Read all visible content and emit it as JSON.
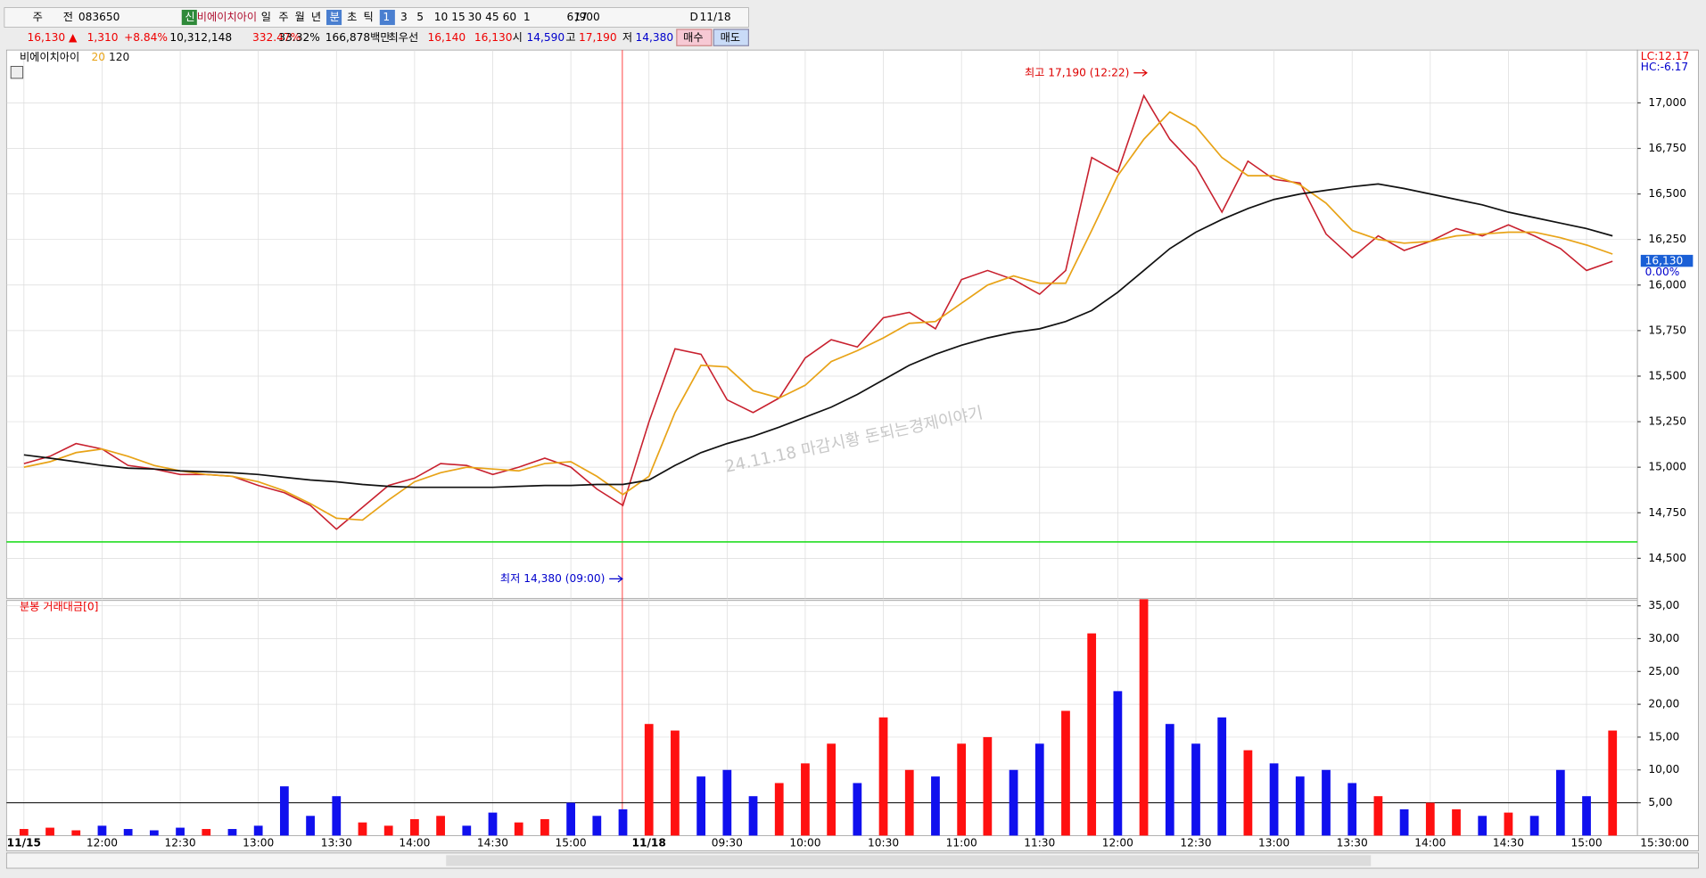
{
  "toolbar": {
    "items": [
      "주",
      "전",
      "083650",
      "신",
      "비에이치아이",
      "일",
      "주",
      "월",
      "년",
      "분",
      "초",
      "틱",
      "1",
      "3",
      "5",
      "10",
      "15",
      "30",
      "45",
      "60",
      "1",
      "617",
      "/900",
      "D",
      "11/18"
    ]
  },
  "info_bar": {
    "items": [
      "16,130 ▲",
      "1,310",
      "+8.84%",
      "10,312,148",
      "332.47%",
      "33.32%",
      "166,878백만",
      "최우선",
      "16,140",
      "16,130",
      "시",
      "14,590",
      "고",
      "17,190",
      "저",
      "14,380",
      "매수",
      "매도"
    ]
  },
  "chart_data": [
    {
      "type": "line",
      "categories": [
        "11/15",
        null,
        null,
        "12:00",
        null,
        null,
        "12:30",
        null,
        null,
        "13:00",
        null,
        null,
        "13:30",
        null,
        null,
        "14:00",
        null,
        null,
        "14:30",
        null,
        null,
        "15:00",
        null,
        null,
        "11/18",
        null,
        null,
        "09:30",
        null,
        null,
        "10:00",
        null,
        null,
        "10:30",
        null,
        null,
        "11:00",
        null,
        null,
        "11:30",
        null,
        null,
        "12:00",
        null,
        null,
        "12:30",
        null,
        null,
        "13:00",
        null,
        null,
        "13:30",
        null,
        null,
        "14:00",
        null,
        null,
        "14:30",
        null,
        null,
        "15:00",
        null,
        null,
        "15:30:00"
      ],
      "series": [
        {
          "name": "비에이치아이",
          "color": "#c8202e",
          "values": [
            15020,
            15060,
            15130,
            15100,
            15010,
            14990,
            14960,
            14960,
            14950,
            14900,
            14860,
            14790,
            14660,
            14780,
            14900,
            14940,
            15020,
            15010,
            14960,
            15000,
            15050,
            15000,
            14880,
            14790,
            15250,
            15650,
            15620,
            15370,
            15300,
            15380,
            15600,
            15700,
            15660,
            15820,
            15850,
            15760,
            16030,
            16080,
            16030,
            15950,
            16080,
            16700,
            16620,
            17040,
            16800,
            16650,
            16400,
            16680,
            16580,
            16560,
            16280,
            16150,
            16270,
            16190,
            16240,
            16310,
            16270,
            16330,
            16270,
            16200,
            16080,
            16130,
            null,
            null
          ]
        },
        {
          "name": "20",
          "color": "#e8a317",
          "values": [
            15000,
            15030,
            15080,
            15100,
            15060,
            15010,
            14980,
            14960,
            14950,
            14920,
            14870,
            14800,
            14720,
            14710,
            14820,
            14920,
            14970,
            15000,
            14990,
            14980,
            15020,
            15030,
            14950,
            14850,
            14950,
            15300,
            15560,
            15550,
            15420,
            15380,
            15450,
            15580,
            15640,
            15710,
            15790,
            15800,
            15900,
            16000,
            16050,
            16010,
            16010,
            16300,
            16600,
            16800,
            16950,
            16870,
            16700,
            16600,
            16600,
            16550,
            16450,
            16300,
            16250,
            16230,
            16240,
            16270,
            16280,
            16290,
            16290,
            16260,
            16220,
            16170,
            null,
            null
          ]
        },
        {
          "name": "120",
          "color": "#111111",
          "values": [
            15068,
            15050,
            15030,
            15010,
            14995,
            14990,
            14980,
            14975,
            14970,
            14960,
            14945,
            14930,
            14920,
            14905,
            14895,
            14890,
            14890,
            14890,
            14890,
            14895,
            14900,
            14900,
            14905,
            14905,
            14930,
            15010,
            15080,
            15130,
            15170,
            15220,
            15275,
            15330,
            15400,
            15480,
            15560,
            15620,
            15670,
            15710,
            15740,
            15760,
            15800,
            15860,
            15960,
            16080,
            16200,
            16290,
            16360,
            16420,
            16470,
            16500,
            16520,
            16540,
            16555,
            16530,
            16500,
            16470,
            16440,
            16400,
            16370,
            16340,
            16310,
            16270,
            null,
            null
          ]
        }
      ],
      "ylim": [
        14280,
        17290
      ],
      "yticks": [
        {
          "value": 14500,
          "label": "14,500"
        },
        {
          "value": 14750,
          "label": "14,750"
        },
        {
          "value": 15000,
          "label": "15,000"
        },
        {
          "value": 15250,
          "label": "15,250"
        },
        {
          "value": 15500,
          "label": "15,500"
        },
        {
          "value": 15750,
          "label": "15,750"
        },
        {
          "value": 16000,
          "label": "16,000"
        },
        {
          "value": 16250,
          "label": "16,250"
        },
        {
          "value": 16500,
          "label": "16,500"
        },
        {
          "value": 16750,
          "label": "16,750"
        },
        {
          "value": 17000,
          "label": "17,000"
        }
      ],
      "grid": true,
      "hline": {
        "value": 14590,
        "color": "#22dd22"
      },
      "annotations": [
        "최고 17,190 (12:22)",
        "최저 14,380 (09:00)"
      ],
      "watermark": "24.11.18 마감시황 돈되는경제이야기",
      "right_labels": [
        "LC:12.17",
        "HC:-6.17"
      ],
      "current_price": {
        "value": 16130,
        "label": "16,130"
      },
      "change_label": "0.00%"
    },
    {
      "type": "bar",
      "title": "분봉 거래대금[0]",
      "values": [
        1.0,
        1.2,
        0.8,
        1.5,
        1.0,
        0.8,
        1.2,
        1.0,
        1.0,
        1.5,
        7.5,
        3.0,
        6.0,
        2.0,
        1.5,
        2.5,
        3.0,
        1.5,
        3.5,
        2.0,
        2.5,
        5.0,
        3.0,
        4.0,
        17.0,
        16.0,
        9.0,
        10.0,
        6.0,
        8.0,
        11.0,
        14.0,
        8.0,
        18.0,
        10.0,
        9.0,
        14.0,
        15.0,
        10.0,
        14.0,
        19.0,
        30.8,
        22.0,
        36.0,
        17.0,
        14.0,
        18.0,
        13.0,
        11.0,
        9.0,
        10.0,
        8.0,
        6.0,
        4.0,
        5.0,
        4.0,
        3.0,
        3.5,
        3.0,
        10.0,
        6.0,
        16.0,
        null,
        null
      ],
      "up_color": "#ff1010",
      "down_color": "#1010ee",
      "ylim": [
        0,
        35.8
      ],
      "yticks": [
        {
          "value": 5,
          "label": "5,00"
        },
        {
          "value": 10,
          "label": "10,00"
        },
        {
          "value": 15,
          "label": "15,00"
        },
        {
          "value": 20,
          "label": "20,00"
        },
        {
          "value": 25,
          "label": "25,00"
        },
        {
          "value": 30,
          "label": "30,00"
        },
        {
          "value": 35,
          "label": "35,00"
        }
      ],
      "grid": true,
      "hline": {
        "value": 5,
        "color": "#000000"
      }
    }
  ]
}
